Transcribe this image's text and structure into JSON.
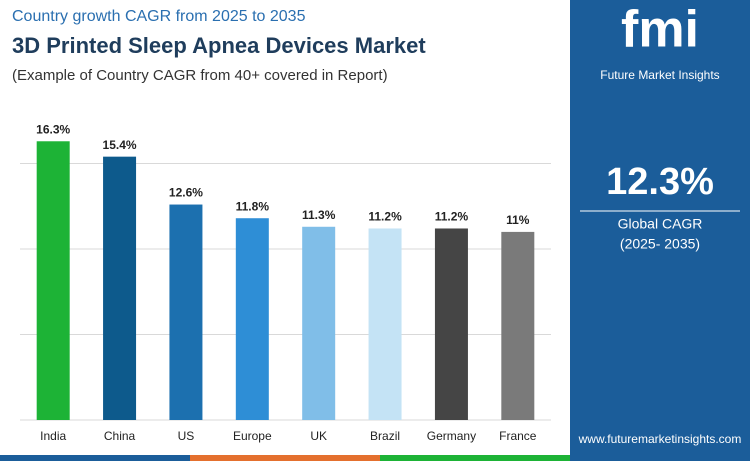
{
  "chart_data": {
    "type": "bar",
    "subtitle": "Country growth CAGR from 2025 to 2035",
    "title": "3D Printed Sleep Apnea Devices Market",
    "note": "(Example of Country CAGR from 40+ covered in Report)",
    "categories": [
      "India",
      "China",
      "US",
      "Europe",
      "UK",
      "Brazil",
      "Germany",
      "France"
    ],
    "values": [
      16.3,
      15.4,
      12.6,
      11.8,
      11.3,
      11.2,
      11.2,
      11
    ],
    "value_labels": [
      "16.3%",
      "15.4%",
      "12.6%",
      "11.8%",
      "11.3%",
      "11.2%",
      "11.2%",
      "11%"
    ],
    "colors": [
      "#1db336",
      "#0d5a8c",
      "#1c70af",
      "#2e8ed6",
      "#80bee8",
      "#c4e3f5",
      "#454545",
      "#7a7a7a"
    ],
    "ylim": [
      0,
      20
    ],
    "yticks": [
      0,
      5,
      10,
      15
    ],
    "grid": true
  },
  "panel": {
    "logo": "fmi",
    "brand": "Future Market Insights",
    "value": "12.3%",
    "label": "Global CAGR",
    "period": "(2025- 2035)",
    "website": "www.futuremarketinsights.com"
  }
}
